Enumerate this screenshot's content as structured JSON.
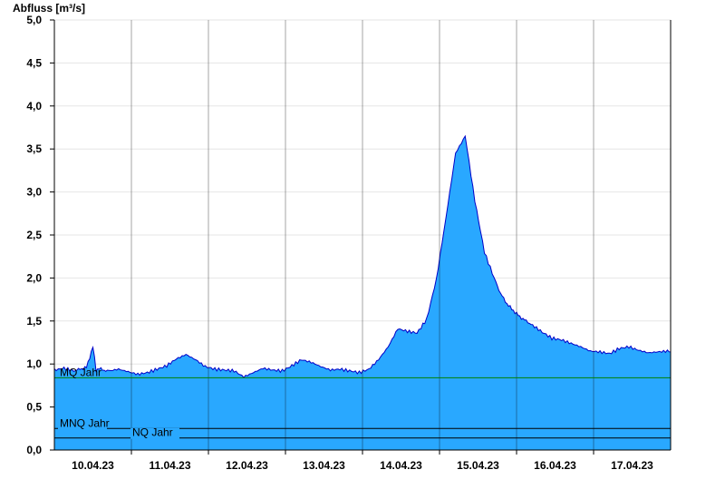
{
  "chart_data": {
    "type": "area",
    "ylabel": "Abfluss [m³/s]",
    "ylim": [
      0,
      5
    ],
    "ytick_labels": [
      "0,0",
      "0,5",
      "1,0",
      "1,5",
      "2,0",
      "2,5",
      "3,0",
      "3,5",
      "4,0",
      "4,5",
      "5,0"
    ],
    "ytick_values": [
      0,
      0.5,
      1.0,
      1.5,
      2.0,
      2.5,
      3.0,
      3.5,
      4.0,
      4.5,
      5.0
    ],
    "xlim": [
      "2023-04-09T16:00",
      "2023-04-17T16:00"
    ],
    "xtick_labels": [
      "10.04.23",
      "11.04.23",
      "12.04.23",
      "13.04.23",
      "14.04.23",
      "15.04.23",
      "16.04.23",
      "17.04.23"
    ],
    "grid": true,
    "fill_color": "#29a8ff",
    "line_color": "#0000c8",
    "series": [
      {
        "x": [
          "2023-04-09T16:00",
          "2023-04-09T19:00",
          "2023-04-09T22:00",
          "2023-04-10T00:00",
          "2023-04-10T02:00",
          "2023-04-10T04:00",
          "2023-04-10T05:00",
          "2023-04-10T06:00",
          "2023-04-10T07:00",
          "2023-04-10T09:00",
          "2023-04-10T12:00",
          "2023-04-10T15:00",
          "2023-04-10T18:00",
          "2023-04-10T21:00",
          "2023-04-11T00:00",
          "2023-04-11T03:00",
          "2023-04-11T06:00",
          "2023-04-11T09:00",
          "2023-04-11T12:00",
          "2023-04-11T15:00",
          "2023-04-11T18:00",
          "2023-04-11T21:00",
          "2023-04-12T00:00",
          "2023-04-12T03:00",
          "2023-04-12T06:00",
          "2023-04-12T09:00",
          "2023-04-12T12:00",
          "2023-04-12T15:00",
          "2023-04-12T18:00",
          "2023-04-12T21:00",
          "2023-04-13T00:00",
          "2023-04-13T03:00",
          "2023-04-13T06:00",
          "2023-04-13T09:00",
          "2023-04-13T12:00",
          "2023-04-13T15:00",
          "2023-04-13T18:00",
          "2023-04-13T21:00",
          "2023-04-14T00:00",
          "2023-04-14T03:00",
          "2023-04-14T06:00",
          "2023-04-14T09:00",
          "2023-04-14T12:00",
          "2023-04-14T15:00",
          "2023-04-14T18:00",
          "2023-04-14T21:00",
          "2023-04-15T00:00",
          "2023-04-15T03:00",
          "2023-04-15T06:00",
          "2023-04-15T09:00",
          "2023-04-15T11:00",
          "2023-04-15T13:00",
          "2023-04-15T15:00",
          "2023-04-15T17:00",
          "2023-04-15T19:00",
          "2023-04-15T21:00",
          "2023-04-16T00:00",
          "2023-04-16T03:00",
          "2023-04-16T06:00",
          "2023-04-16T09:00",
          "2023-04-16T12:00",
          "2023-04-16T15:00",
          "2023-04-16T18:00",
          "2023-04-16T21:00",
          "2023-04-17T00:00",
          "2023-04-17T03:00",
          "2023-04-17T06:00",
          "2023-04-17T09:00",
          "2023-04-17T12:00",
          "2023-04-17T15:00",
          "2023-04-17T16:00"
        ],
        "y": [
          0.93,
          0.95,
          0.92,
          0.94,
          0.96,
          1.2,
          0.93,
          0.95,
          0.93,
          0.92,
          0.94,
          0.91,
          0.88,
          0.9,
          0.94,
          0.98,
          1.06,
          1.11,
          1.05,
          0.97,
          0.94,
          0.93,
          0.92,
          0.85,
          0.9,
          0.95,
          0.93,
          0.92,
          0.98,
          1.05,
          1.02,
          0.97,
          0.93,
          0.94,
          0.92,
          0.9,
          0.94,
          1.05,
          1.2,
          1.41,
          1.38,
          1.36,
          1.52,
          1.98,
          2.7,
          3.45,
          3.65,
          2.9,
          2.3,
          2.0,
          1.82,
          1.7,
          1.62,
          1.55,
          1.5,
          1.45,
          1.37,
          1.3,
          1.28,
          1.24,
          1.2,
          1.15,
          1.14,
          1.12,
          1.18,
          1.2,
          1.16,
          1.13,
          1.14,
          1.15,
          1.14
        ]
      }
    ],
    "reference_lines": [
      {
        "label": "MQ Jahr",
        "value": 0.84,
        "color": "#008000"
      },
      {
        "label": "MNQ Jahr",
        "value": 0.25,
        "color": "#000000"
      },
      {
        "label": "NQ Jahr",
        "value": 0.14,
        "color": "#000000"
      }
    ]
  }
}
